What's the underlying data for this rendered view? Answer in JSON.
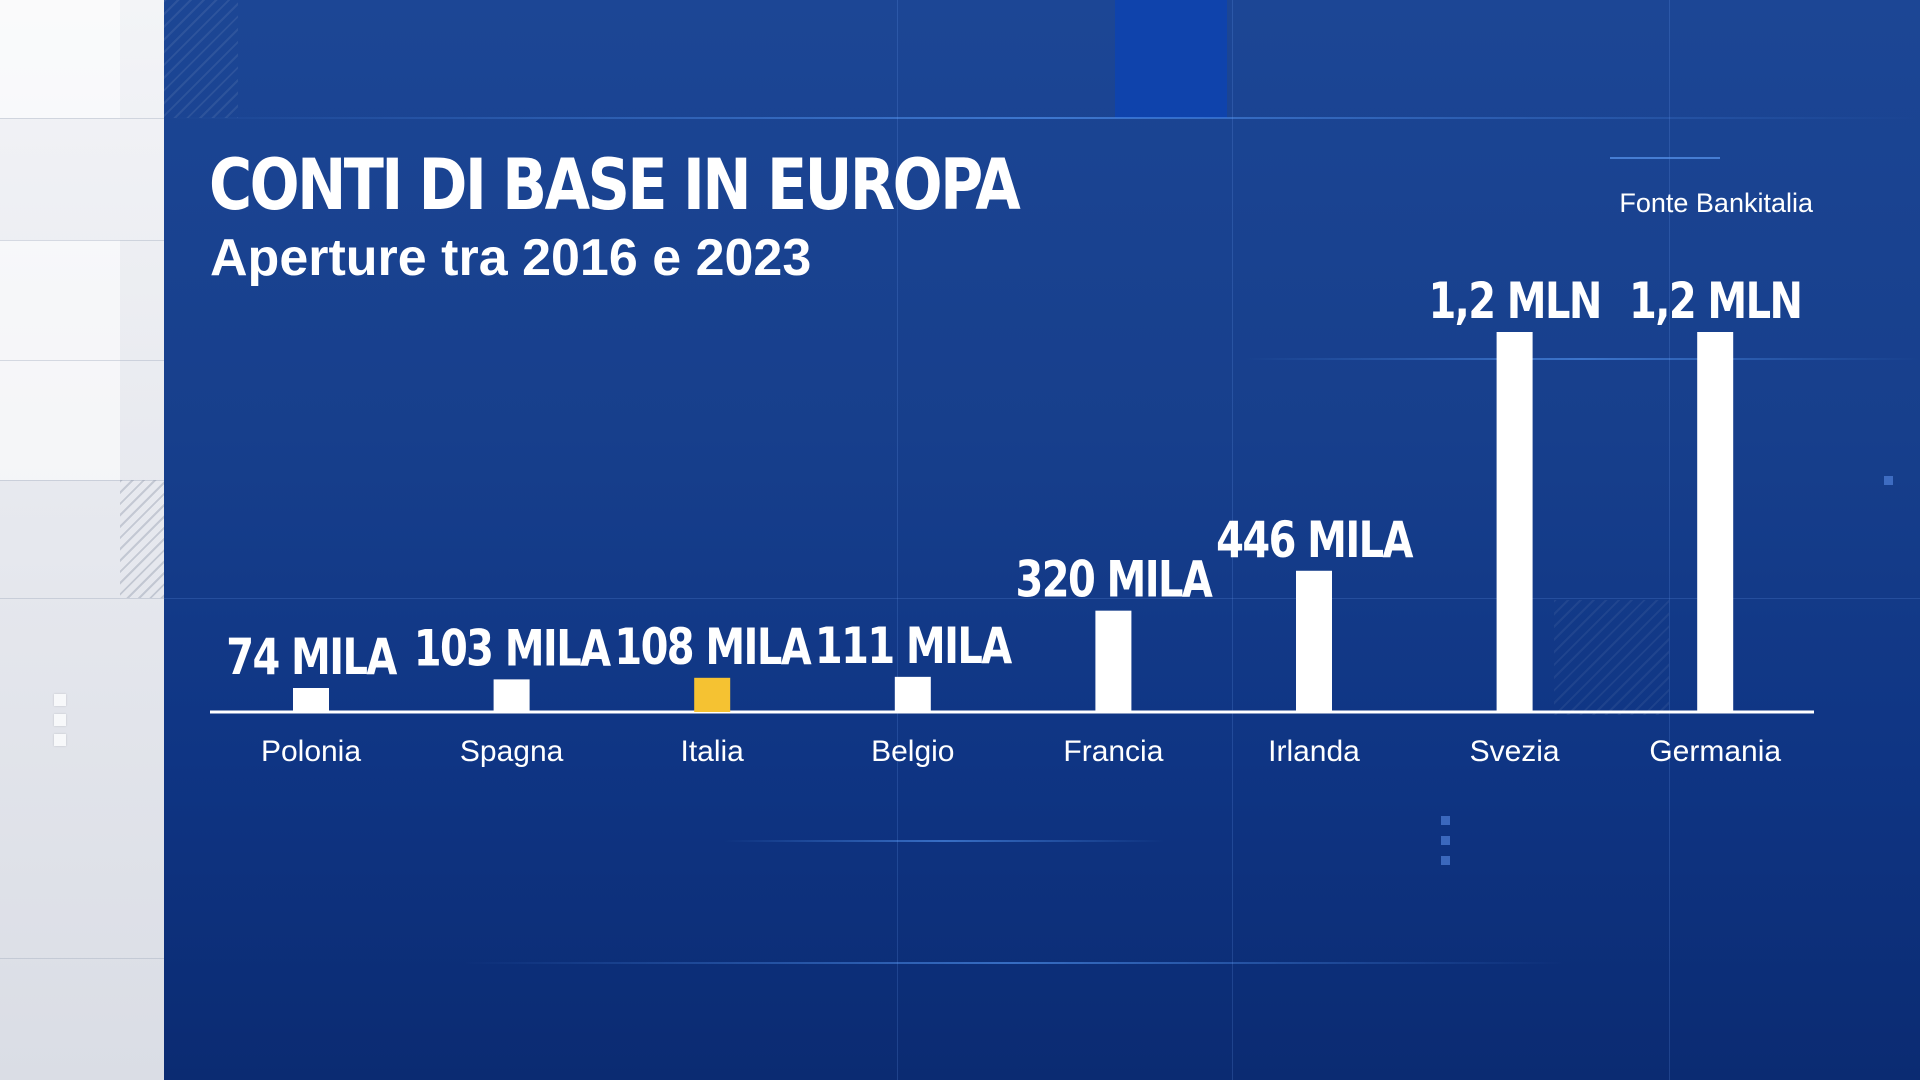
{
  "header": {
    "title": "CONTI DI BASE IN EUROPA",
    "subtitle": "Aperture tra 2016 e 2023",
    "source": "Fonte Bankitalia"
  },
  "colors": {
    "background": "#173f8c",
    "bar_default": "#ffffff",
    "bar_highlight": "#f5c232",
    "baseline": "#ffffff"
  },
  "chart_data": {
    "type": "bar",
    "title": "CONTI DI BASE IN EUROPA",
    "subtitle": "Aperture tra 2016 e 2023",
    "categories": [
      "Polonia",
      "Spagna",
      "Italia",
      "Belgio",
      "Francia",
      "Irlanda",
      "Svezia",
      "Germania"
    ],
    "values": [
      74000,
      103000,
      108000,
      111000,
      320000,
      446000,
      1200000,
      1200000
    ],
    "value_labels": [
      "74 MILA",
      "103 MILA",
      "108 MILA",
      "111 MILA",
      "320 MILA",
      "446 MILA",
      "1,2 MLN",
      "1,2 MLN"
    ],
    "highlight": "Italia",
    "ylim": [
      0,
      1200000
    ],
    "grid": false,
    "source": "Fonte Bankitalia"
  }
}
